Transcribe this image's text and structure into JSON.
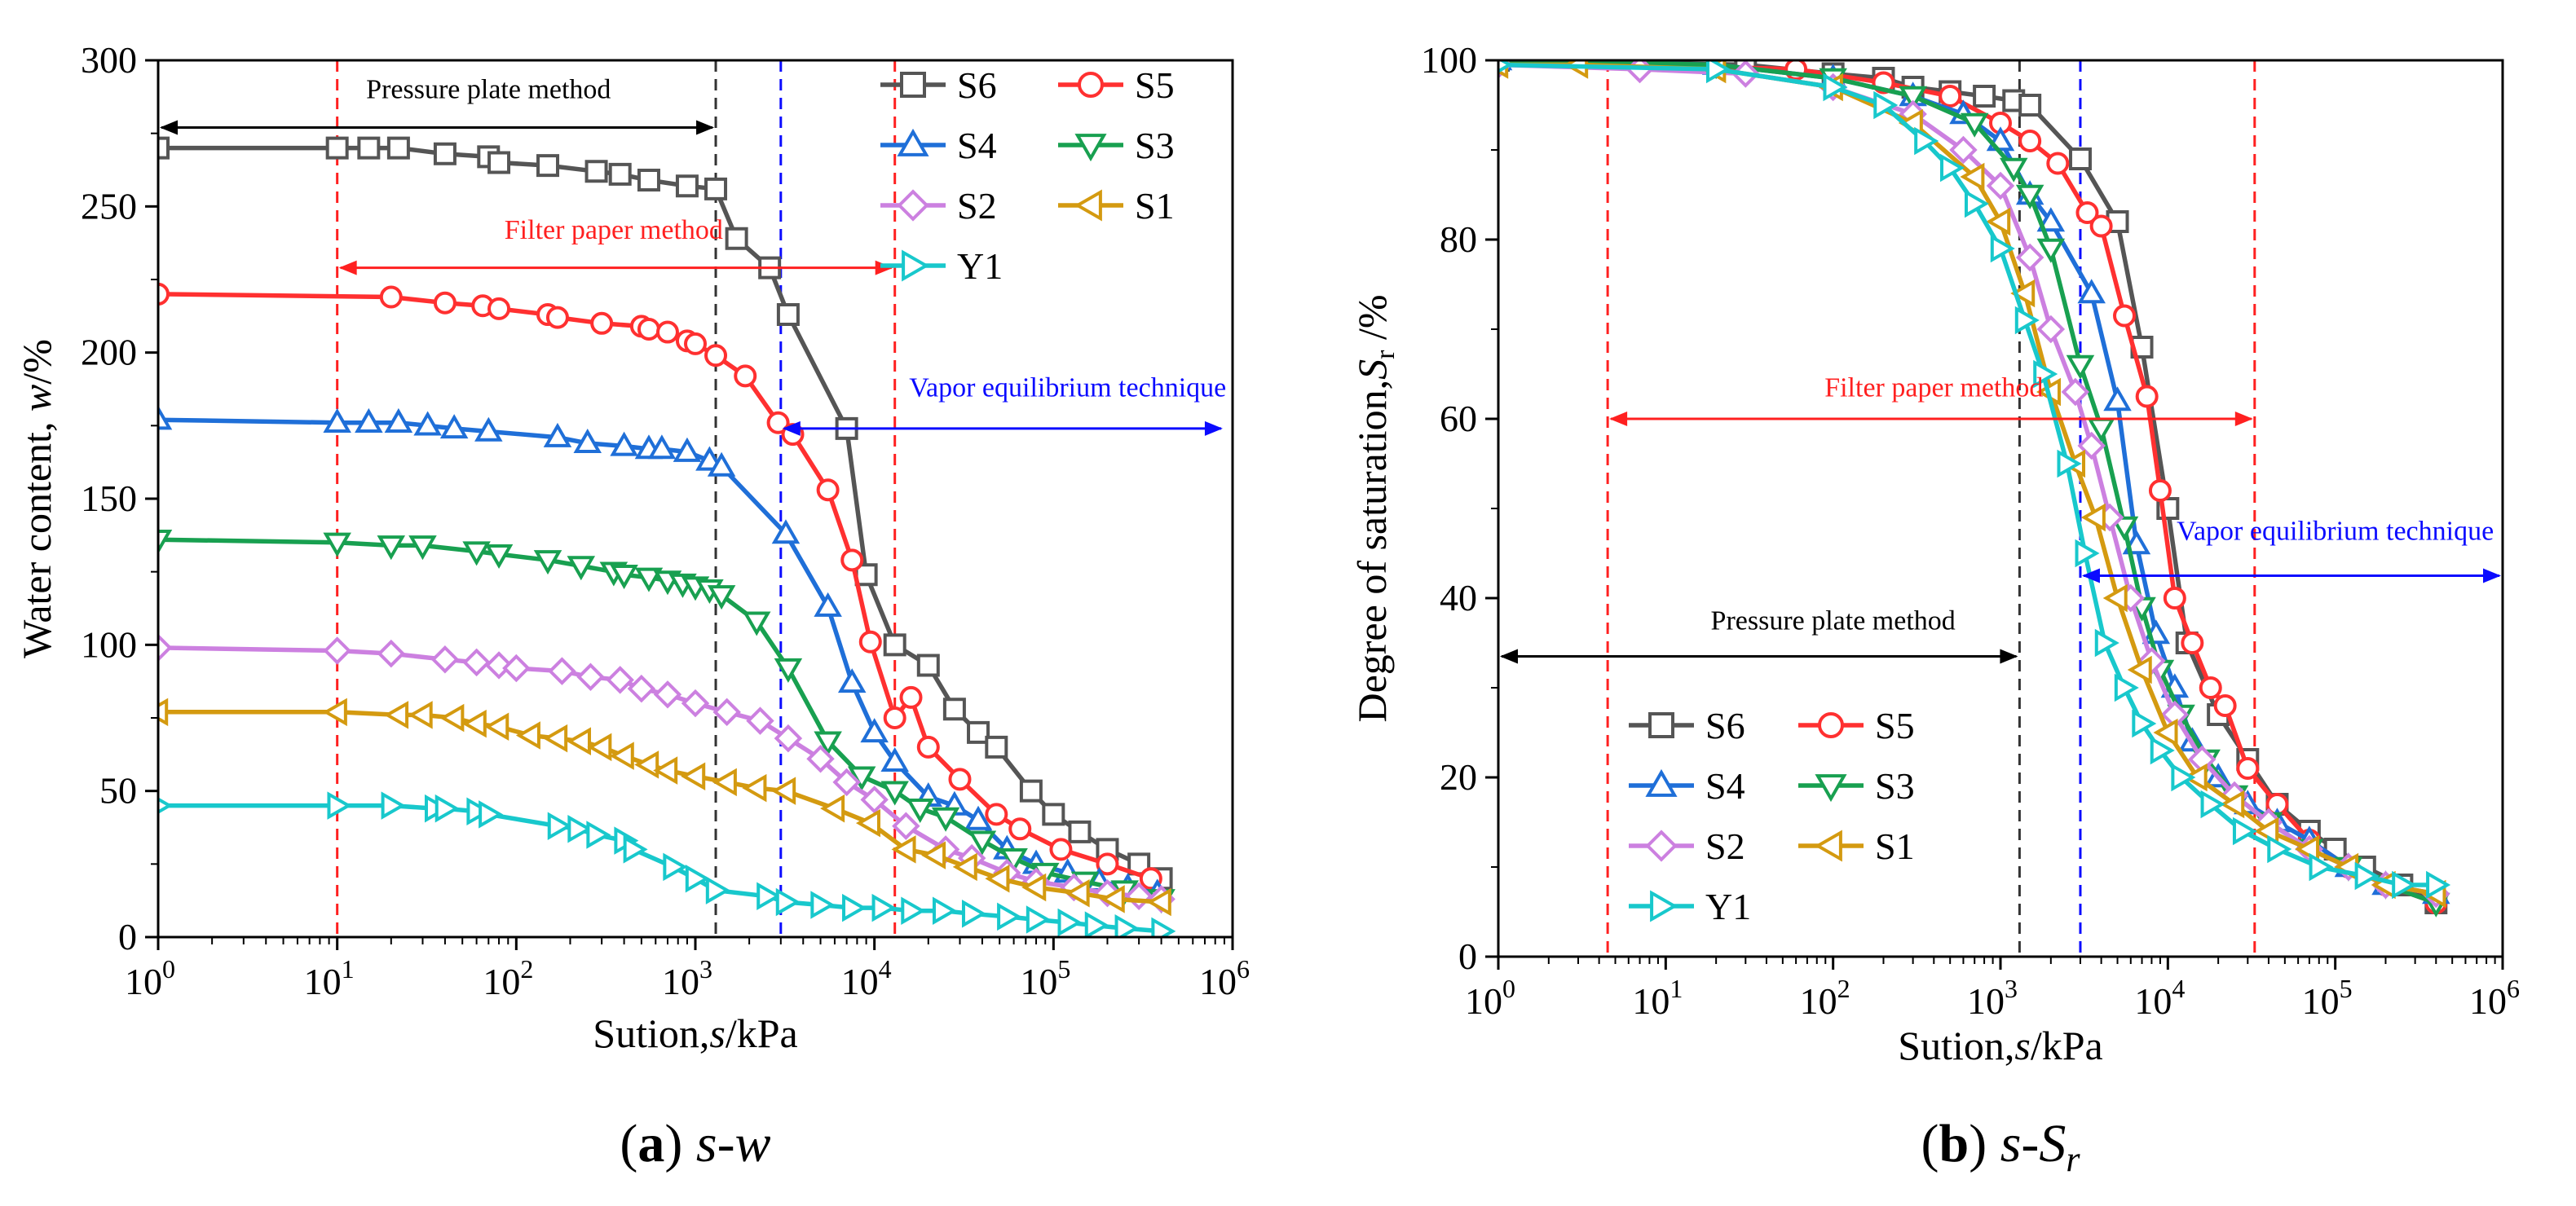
{
  "colors": {
    "S6": "#555555",
    "S5": "#ff3030",
    "S4": "#1f6fd8",
    "S3": "#18a050",
    "S2": "#cc80e0",
    "S1": "#d49a10",
    "Y1": "#18c8cc",
    "pressure": "#000000",
    "filter": "#ff2020",
    "vapor": "#0b0bff",
    "dash_black": "#333333"
  },
  "chart_data": [
    {
      "type": "line",
      "panel": "a",
      "caption": {
        "letter": "(a)",
        "text": "s-w"
      },
      "xscale": "log",
      "xlim": [
        1,
        1000000
      ],
      "ylim": [
        0,
        300
      ],
      "xlabel": "Sution,s/kPa",
      "ylabel": "Water content, w/%",
      "xticks": [
        {
          "value": 1,
          "base": "10",
          "exp": "0"
        },
        {
          "value": 10,
          "base": "10",
          "exp": "1"
        },
        {
          "value": 100,
          "base": "10",
          "exp": "2"
        },
        {
          "value": 1000,
          "base": "10",
          "exp": "3"
        },
        {
          "value": 10000,
          "base": "10",
          "exp": "4"
        },
        {
          "value": 100000,
          "base": "10",
          "exp": "5"
        },
        {
          "value": 1000000,
          "base": "10",
          "exp": "6"
        }
      ],
      "yticks": [
        "0",
        "50",
        "100",
        "150",
        "200",
        "250",
        "300"
      ],
      "legend_position": "top-right",
      "legend_order": [
        "S6",
        "S5",
        "S4",
        "S3",
        "S2",
        "S1",
        "Y1"
      ],
      "series": [
        {
          "name": "S6",
          "marker": "square",
          "x": [
            1,
            10,
            15,
            22,
            40,
            70,
            80,
            150,
            280,
            380,
            550,
            900,
            1300,
            1700,
            2600,
            3300,
            7000,
            9000,
            13000,
            20000,
            28000,
            38000,
            48000,
            75000,
            100000,
            140000,
            200000,
            300000,
            400000
          ],
          "y": [
            270,
            270,
            270,
            270,
            268,
            267,
            265,
            264,
            262,
            261,
            259,
            257,
            256,
            239,
            229,
            213,
            174,
            124,
            100,
            93,
            78,
            70,
            65,
            50,
            42,
            36,
            30,
            25,
            20
          ]
        },
        {
          "name": "S5",
          "marker": "circle",
          "x": [
            1,
            20,
            40,
            65,
            80,
            150,
            170,
            300,
            500,
            550,
            700,
            900,
            1000,
            1300,
            1900,
            2900,
            3500,
            5500,
            7500,
            9500,
            13000,
            16000,
            20000,
            30000,
            48000,
            65000,
            110000,
            200000,
            350000
          ],
          "y": [
            220,
            219,
            217,
            216,
            215,
            213,
            212,
            210,
            209,
            208,
            207,
            204,
            203,
            199,
            192,
            176,
            172,
            153,
            129,
            101,
            75,
            82,
            65,
            54,
            42,
            37,
            30,
            25,
            20
          ]
        },
        {
          "name": "S4",
          "marker": "triangle-up",
          "x": [
            1,
            10,
            15,
            22,
            32,
            45,
            70,
            170,
            250,
            400,
            550,
            650,
            900,
            1200,
            1400,
            3200,
            5500,
            7500,
            10000,
            13000,
            20000,
            28000,
            38000,
            55000,
            80000,
            120000,
            180000,
            260000,
            380000
          ],
          "y": [
            177,
            176,
            176,
            176,
            175,
            174,
            173,
            171,
            169,
            168,
            167,
            167,
            166,
            163,
            161,
            138,
            113,
            87,
            70,
            60,
            48,
            45,
            40,
            30,
            25,
            22,
            19,
            17,
            15
          ]
        },
        {
          "name": "S3",
          "marker": "triangle-down",
          "x": [
            1,
            10,
            20,
            30,
            60,
            80,
            150,
            230,
            350,
            400,
            550,
            700,
            850,
            1000,
            1200,
            1400,
            2200,
            3300,
            5500,
            8500,
            13000,
            18000,
            25000,
            40000,
            60000,
            90000,
            150000,
            250000,
            400000
          ],
          "y": [
            136,
            135,
            134,
            134,
            132,
            131,
            129,
            127,
            125,
            124,
            123,
            122,
            121,
            120,
            119,
            117,
            108,
            92,
            67,
            55,
            50,
            44,
            41,
            33,
            27,
            22,
            19,
            16,
            13
          ]
        },
        {
          "name": "S2",
          "marker": "diamond",
          "x": [
            1,
            10,
            20,
            40,
            60,
            80,
            100,
            180,
            260,
            380,
            500,
            700,
            1000,
            1500,
            2300,
            3300,
            5000,
            7000,
            10000,
            15000,
            25000,
            35000,
            55000,
            80000,
            130000,
            200000,
            300000,
            400000
          ],
          "y": [
            99,
            98,
            97,
            95,
            94,
            93,
            92,
            91,
            89,
            88,
            85,
            83,
            80,
            77,
            74,
            68,
            61,
            53,
            47,
            38,
            30,
            27,
            22,
            19,
            17,
            15,
            14,
            13
          ]
        },
        {
          "name": "S1",
          "marker": "triangle-left",
          "x": [
            1,
            10,
            22,
            30,
            45,
            60,
            80,
            120,
            170,
            230,
            300,
            400,
            550,
            700,
            1000,
            1500,
            2200,
            3200,
            6000,
            9500,
            15000,
            22000,
            33000,
            50000,
            80000,
            140000,
            220000,
            400000
          ],
          "y": [
            77,
            77,
            76,
            76,
            75,
            73,
            72,
            69,
            68,
            67,
            65,
            62,
            59,
            57,
            55,
            53,
            51,
            50,
            44,
            39,
            30,
            28,
            24,
            20,
            17,
            15,
            13,
            12
          ]
        },
        {
          "name": "Y1",
          "marker": "triangle-right",
          "x": [
            1,
            10,
            20,
            35,
            40,
            60,
            70,
            170,
            220,
            280,
            400,
            450,
            750,
            1000,
            1300,
            2500,
            3200,
            5000,
            7500,
            11000,
            16000,
            24000,
            35000,
            55000,
            80000,
            120000,
            170000,
            250000,
            400000
          ],
          "y": [
            45,
            45,
            45,
            44,
            44,
            43,
            42,
            38,
            37,
            35,
            33,
            30,
            24,
            20,
            16,
            14,
            12,
            11,
            10,
            10,
            9,
            9,
            8,
            7,
            6,
            5,
            4,
            3,
            2
          ]
        }
      ],
      "ranges": [
        {
          "label": "Pressure plate method",
          "color_key": "pressure",
          "x1": 1,
          "x2": 1300,
          "y": 277,
          "label_x": 70,
          "label_y": 287
        },
        {
          "label": "Filter paper method",
          "color_key": "filter",
          "x1": 10,
          "x2": 13000,
          "y": 229,
          "label_x": 350,
          "label_y": 239
        },
        {
          "label": "Vapor equilibrium technique",
          "color_key": "vapor",
          "x1": 3000,
          "x2": 900000,
          "y": 174,
          "label_x": 120000,
          "label_y": 185
        }
      ],
      "vlines": [
        {
          "x": 10,
          "color_key": "filter"
        },
        {
          "x": 1300,
          "color_key": "dash_black"
        },
        {
          "x": 3000,
          "color_key": "vapor"
        },
        {
          "x": 13000,
          "color_key": "filter"
        }
      ]
    },
    {
      "type": "line",
      "panel": "b",
      "caption": {
        "letter": "(b)",
        "text": "s-Sr"
      },
      "xscale": "log",
      "xlim": [
        1,
        1000000
      ],
      "ylim": [
        0,
        100
      ],
      "xlabel": "Sution,s/kPa",
      "ylabel": "Degree of saturation,Sr /%",
      "xticks": [
        {
          "value": 1,
          "base": "10",
          "exp": "0"
        },
        {
          "value": 10,
          "base": "10",
          "exp": "1"
        },
        {
          "value": 100,
          "base": "10",
          "exp": "2"
        },
        {
          "value": 1000,
          "base": "10",
          "exp": "3"
        },
        {
          "value": 10000,
          "base": "10",
          "exp": "4"
        },
        {
          "value": 100000,
          "base": "10",
          "exp": "5"
        },
        {
          "value": 1000000,
          "base": "10",
          "exp": "6"
        }
      ],
      "yticks": [
        "0",
        "20",
        "40",
        "60",
        "80",
        "100"
      ],
      "legend_position": "lower-left",
      "legend_order": [
        "S6",
        "S5",
        "S4",
        "S3",
        "S2",
        "S1",
        "Y1"
      ],
      "series": [
        {
          "name": "S6",
          "marker": "square",
          "x": [
            1,
            30,
            100,
            200,
            300,
            500,
            800,
            1200,
            1500,
            3000,
            5000,
            7000,
            10000,
            13000,
            20000,
            30000,
            45000,
            70000,
            100000,
            150000,
            250000,
            400000
          ],
          "y": [
            100,
            99.5,
            98.5,
            98,
            97,
            96.5,
            96,
            95.5,
            95,
            89,
            82,
            68,
            50,
            35,
            27,
            22,
            17,
            14,
            12,
            10,
            8,
            6
          ]
        },
        {
          "name": "S5",
          "marker": "circle",
          "x": [
            1,
            60,
            200,
            500,
            1000,
            1500,
            2200,
            3300,
            4000,
            5500,
            7500,
            9000,
            11000,
            14000,
            18000,
            22000,
            30000,
            45000,
            70000,
            120000,
            200000,
            400000
          ],
          "y": [
            100,
            99,
            97.5,
            96,
            93,
            91,
            88.5,
            83,
            81.5,
            71.5,
            62.5,
            52,
            40,
            35,
            30,
            28,
            21,
            17,
            13,
            10,
            8,
            6
          ]
        },
        {
          "name": "S4",
          "marker": "triangle-up",
          "x": [
            1,
            20,
            100,
            300,
            600,
            1000,
            1500,
            2000,
            3500,
            5000,
            6500,
            8500,
            11000,
            14000,
            20000,
            30000,
            45000,
            70000,
            120000,
            200000,
            400000
          ],
          "y": [
            100,
            99.5,
            98,
            96,
            94,
            91,
            85,
            82,
            74,
            62,
            46,
            36,
            30,
            24,
            20,
            17,
            15,
            13,
            10,
            8,
            7
          ]
        },
        {
          "name": "S3",
          "marker": "triangle-down",
          "x": [
            1,
            20,
            100,
            300,
            700,
            1200,
            1500,
            2000,
            3000,
            4000,
            5500,
            7000,
            9000,
            12000,
            17000,
            25000,
            40000,
            70000,
            120000,
            200000,
            400000
          ],
          "y": [
            100,
            99.5,
            98,
            96,
            93,
            88,
            85,
            79,
            66,
            59,
            48,
            39,
            32,
            27,
            22,
            18,
            15,
            12,
            10,
            8,
            6
          ]
        },
        {
          "name": "S2",
          "marker": "diamond",
          "x": [
            1,
            7,
            30,
            100,
            300,
            600,
            1000,
            1500,
            2000,
            2800,
            3500,
            4500,
            6000,
            8000,
            11000,
            16000,
            25000,
            40000,
            70000,
            120000,
            200000,
            400000
          ],
          "y": [
            99.5,
            99,
            98.5,
            97,
            94,
            90,
            86,
            78,
            70,
            63,
            57,
            49,
            40,
            33,
            27,
            22,
            18,
            15,
            12,
            10,
            8,
            7
          ]
        },
        {
          "name": "S1",
          "marker": "triangle-left",
          "x": [
            1,
            3,
            20,
            100,
            300,
            700,
            1000,
            1400,
            2000,
            2800,
            3700,
            5000,
            7000,
            10000,
            15000,
            25000,
            40000,
            70000,
            120000,
            200000,
            400000
          ],
          "y": [
            99.5,
            99.5,
            99,
            97,
            93,
            87,
            82,
            74,
            63,
            55,
            49,
            40,
            32,
            25,
            20,
            17,
            14,
            12,
            10,
            8,
            7
          ]
        },
        {
          "name": "Y1",
          "marker": "triangle-right",
          "x": [
            1,
            20,
            100,
            200,
            350,
            500,
            700,
            1000,
            1400,
            1800,
            2500,
            3200,
            4200,
            5500,
            7000,
            9000,
            12000,
            18000,
            28000,
            45000,
            80000,
            150000,
            250000,
            400000
          ],
          "y": [
            99.5,
            99,
            97,
            95,
            91,
            88,
            84,
            79,
            71,
            65,
            55,
            45,
            35,
            30,
            26,
            23,
            20,
            17,
            14,
            12,
            10,
            9,
            8,
            8
          ]
        }
      ],
      "ranges": [
        {
          "label": "Filter paper method",
          "color_key": "filter",
          "x1": 4.5,
          "x2": 33000,
          "y": 60,
          "label_x": 400,
          "label_y": 62.5
        },
        {
          "label": "Vapor equilibrium technique",
          "color_key": "vapor",
          "x1": 3000,
          "x2": 1000000,
          "y": 42.5,
          "label_x": 100000,
          "label_y": 46.5
        },
        {
          "label": "Pressure plate method",
          "color_key": "pressure",
          "x1": 1,
          "x2": 1300,
          "y": 33.5,
          "label_x": 100,
          "label_y": 36.5
        }
      ],
      "vlines": [
        {
          "x": 4.5,
          "color_key": "filter"
        },
        {
          "x": 1300,
          "color_key": "dash_black"
        },
        {
          "x": 3000,
          "color_key": "vapor"
        },
        {
          "x": 33000,
          "color_key": "filter"
        }
      ]
    }
  ]
}
